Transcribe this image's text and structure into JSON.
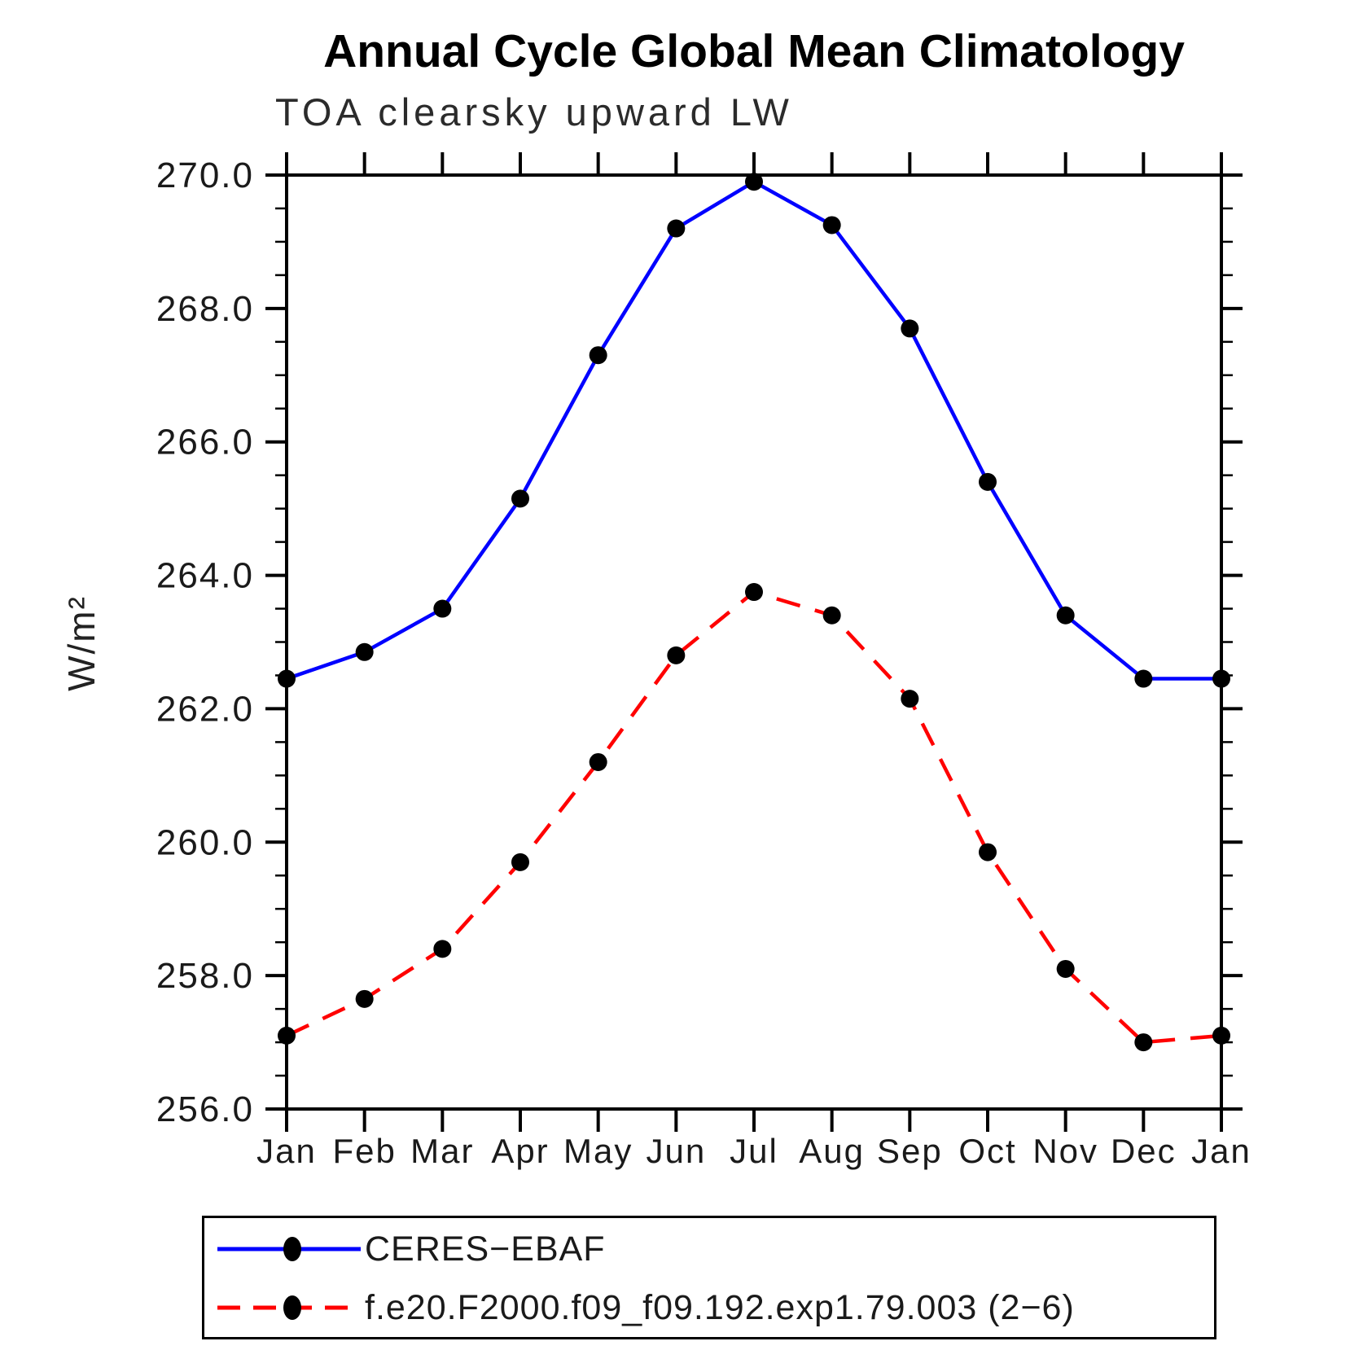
{
  "header": {
    "title": "Annual Cycle Global Mean Climatology",
    "subtitle": "TOA clearsky upward LW"
  },
  "chart_data": {
    "type": "line",
    "title": "Annual Cycle Global Mean Climatology",
    "subtitle": "TOA clearsky upward LW",
    "ylabel": "W/m²",
    "xlabel": "",
    "categories": [
      "Jan",
      "Feb",
      "Mar",
      "Apr",
      "May",
      "Jun",
      "Jul",
      "Aug",
      "Sep",
      "Oct",
      "Nov",
      "Dec",
      "Jan"
    ],
    "ylim": [
      256.0,
      270.0
    ],
    "ytick_major_step": 2.0,
    "ytick_minor_step": 0.5,
    "ytick_labels": [
      "256.0",
      "258.0",
      "260.0",
      "262.0",
      "264.0",
      "266.0",
      "268.0",
      "270.0"
    ],
    "grid": false,
    "legend_position": "bottom-left-box",
    "axis_color": "#000000",
    "marker_color": "#000000",
    "series": [
      {
        "name": "CERES−EBAF",
        "color": "#0000ff",
        "line_style": "solid",
        "marker": "filled-circle",
        "values": [
          262.45,
          262.85,
          263.5,
          265.15,
          267.3,
          269.2,
          269.9,
          269.25,
          267.7,
          265.4,
          263.4,
          262.45,
          262.45
        ]
      },
      {
        "name": "f.e20.F2000.f09_f09.192.exp1.79.003 (2−6)",
        "color": "#ff0000",
        "line_style": "dashed",
        "marker": "filled-circle",
        "values": [
          257.1,
          257.65,
          258.4,
          259.7,
          261.2,
          262.8,
          263.75,
          263.4,
          262.15,
          259.85,
          258.1,
          257.0,
          257.1
        ]
      }
    ]
  }
}
